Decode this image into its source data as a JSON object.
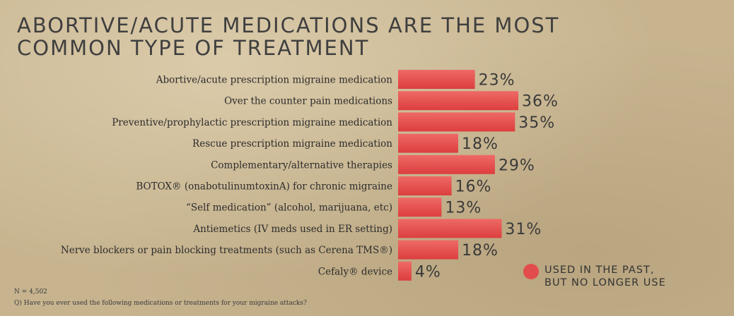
{
  "title_lines": [
    "ABORTIVE/ACUTE MEDICATIONS ARE THE MOST",
    "COMMON TYPE OF TREATMENT"
  ],
  "legend": {
    "lines": [
      "USED IN THE PAST,",
      "BUT NO LONGER USE"
    ],
    "color": "#e34c4c"
  },
  "footnotes": {
    "n": "N = 4,502",
    "question": "Q) Have you ever used the following medications or treatments for your migraine attacks?"
  },
  "chart_data": {
    "type": "bar",
    "orientation": "horizontal",
    "title": "ABORTIVE/ACUTE MEDICATIONS ARE THE MOST COMMON TYPE OF TREATMENT",
    "categories": [
      "Abortive/acute prescription migraine medication",
      "Over the counter pain medications",
      "Preventive/prophylactic prescription migraine medication",
      "Rescue prescription migraine medication",
      "Complementary/alternative therapies",
      "BOTOX®  (onabotulinumtoxinA) for chronic migraine",
      "“Self medication” (alcohol, marijuana, etc)",
      "Antiemetics (IV meds used in ER setting)",
      "Nerve blockers or pain blocking treatments (such as Cerena TMS®)",
      "Cefaly® device"
    ],
    "series": [
      {
        "name": "USED IN THE PAST, BUT NO LONGER USE",
        "values": [
          23,
          36,
          35,
          18,
          29,
          16,
          13,
          31,
          18,
          4
        ],
        "labels": [
          "23%",
          "36%",
          "35%",
          "18%",
          "29%",
          "16%",
          "13%",
          "31%",
          "18%",
          "4%"
        ],
        "color": "#e34c4c"
      }
    ],
    "xlim": [
      0,
      36
    ],
    "grid": false,
    "legend_position": "bottom-right"
  }
}
